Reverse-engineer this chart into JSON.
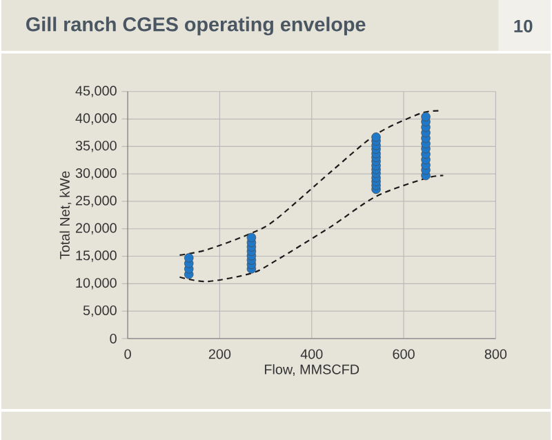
{
  "chart_data": {
    "type": "scatter",
    "title": "Gill ranch CGES operating envelope",
    "xlabel": "Flow, MMSCFD",
    "ylabel": "Total Net, kWe",
    "annotations": [
      "10"
    ],
    "xlim": [
      0,
      800
    ],
    "xticks": [
      0,
      200,
      400,
      600,
      800
    ],
    "ylim": [
      0,
      45000
    ],
    "yticks": [
      0,
      {
        "value": 5000,
        "label": "5,000"
      },
      {
        "value": 10000,
        "label": "10,000"
      },
      {
        "value": 15000,
        "label": "15,000"
      },
      {
        "value": 20000,
        "label": "20,000"
      },
      {
        "value": 25000,
        "label": "25,000"
      },
      {
        "value": 30000,
        "label": "30,000"
      },
      {
        "value": 35000,
        "label": "35,000"
      },
      {
        "value": 40000,
        "label": "40,000"
      },
      {
        "value": 45000,
        "label": "45,000"
      }
    ],
    "grid": true,
    "series": [
      {
        "marker": "circle",
        "color": "#1f78c8",
        "x": [
          133,
          133,
          133,
          133,
          269,
          269,
          269,
          269,
          269,
          269,
          269,
          269,
          540,
          540,
          540,
          540,
          540,
          540,
          540,
          540,
          540,
          540,
          540,
          540,
          540,
          540,
          648,
          648,
          648,
          648,
          648,
          648,
          648,
          648,
          648,
          648,
          648,
          648
        ],
        "values": [
          11700,
          12700,
          13700,
          14700,
          12700,
          13500,
          14300,
          15100,
          15900,
          16700,
          17500,
          18400,
          27200,
          27900,
          28600,
          29300,
          30100,
          30800,
          31500,
          32300,
          33000,
          33700,
          34500,
          35200,
          36000,
          36700,
          29700,
          30700,
          31600,
          32600,
          33600,
          34600,
          35500,
          36500,
          37500,
          38500,
          39500,
          40400
        ]
      },
      {
        "type": "line",
        "marker": "none",
        "line_style": "dashed",
        "color": "#1a1a1a",
        "x": [
          113,
          173,
          269,
          322,
          442,
          540,
          636,
          680
        ],
        "values": [
          15200,
          16200,
          19200,
          21700,
          30400,
          37200,
          41000,
          41500
        ]
      },
      {
        "type": "line",
        "marker": "none",
        "line_style": "dashed",
        "color": "#1a1a1a",
        "x": [
          113,
          173,
          269,
          322,
          442,
          540,
          648,
          686
        ],
        "values": [
          11200,
          10400,
          11900,
          14200,
          20400,
          25900,
          29200,
          29700
        ]
      }
    ]
  }
}
